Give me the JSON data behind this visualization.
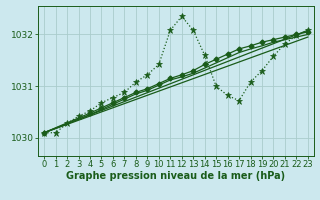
{
  "xlabel": "Graphe pression niveau de la mer (hPa)",
  "bg_color": "#cce8ee",
  "grid_color": "#aacccc",
  "line_color": "#1a5c1a",
  "xlim": [
    -0.5,
    23.5
  ],
  "ylim": [
    1029.65,
    1032.55
  ],
  "yticks": [
    1030,
    1031,
    1032
  ],
  "xticks": [
    0,
    1,
    2,
    3,
    4,
    5,
    6,
    7,
    8,
    9,
    10,
    11,
    12,
    13,
    14,
    15,
    16,
    17,
    18,
    19,
    20,
    21,
    22,
    23
  ],
  "series1_x": [
    0,
    1,
    2,
    3,
    4,
    5,
    6,
    7,
    8,
    9,
    10,
    11,
    12,
    13,
    14,
    15,
    16,
    17,
    18,
    19,
    20,
    21,
    22,
    23
  ],
  "series1_y": [
    1030.1,
    1030.1,
    1030.28,
    1030.42,
    1030.52,
    1030.68,
    1030.78,
    1030.88,
    1031.08,
    1031.22,
    1031.42,
    1032.08,
    1032.35,
    1032.08,
    1031.6,
    1031.0,
    1030.82,
    1030.72,
    1031.08,
    1031.3,
    1031.58,
    1031.82,
    1031.98,
    1032.08
  ],
  "series2_x": [
    0,
    23
  ],
  "series2_y": [
    1030.1,
    1032.08
  ],
  "series3_x": [
    0,
    23
  ],
  "series3_y": [
    1030.1,
    1031.95
  ],
  "series4_x": [
    0,
    4,
    5,
    6,
    7,
    8,
    9,
    10,
    11,
    12,
    13,
    14,
    15,
    16,
    17,
    18,
    19,
    20,
    21,
    22,
    23
  ],
  "series4_y": [
    1030.1,
    1030.48,
    1030.58,
    1030.68,
    1030.78,
    1030.88,
    1030.95,
    1031.05,
    1031.15,
    1031.22,
    1031.3,
    1031.42,
    1031.52,
    1031.62,
    1031.72,
    1031.78,
    1031.85,
    1031.9,
    1031.95,
    1032.0,
    1032.05
  ],
  "series5_x": [
    0,
    4,
    5,
    6,
    7,
    8,
    9,
    10,
    11,
    12,
    13,
    14,
    15,
    16,
    17,
    18,
    19,
    20,
    21,
    22,
    23
  ],
  "series5_y": [
    1030.1,
    1030.45,
    1030.55,
    1030.65,
    1030.75,
    1030.85,
    1030.92,
    1031.02,
    1031.12,
    1031.18,
    1031.25,
    1031.35,
    1031.45,
    1031.55,
    1031.65,
    1031.72,
    1031.78,
    1031.85,
    1031.9,
    1031.95,
    1032.0
  ],
  "xlabel_fontsize": 7,
  "tick_fontsize": 6
}
